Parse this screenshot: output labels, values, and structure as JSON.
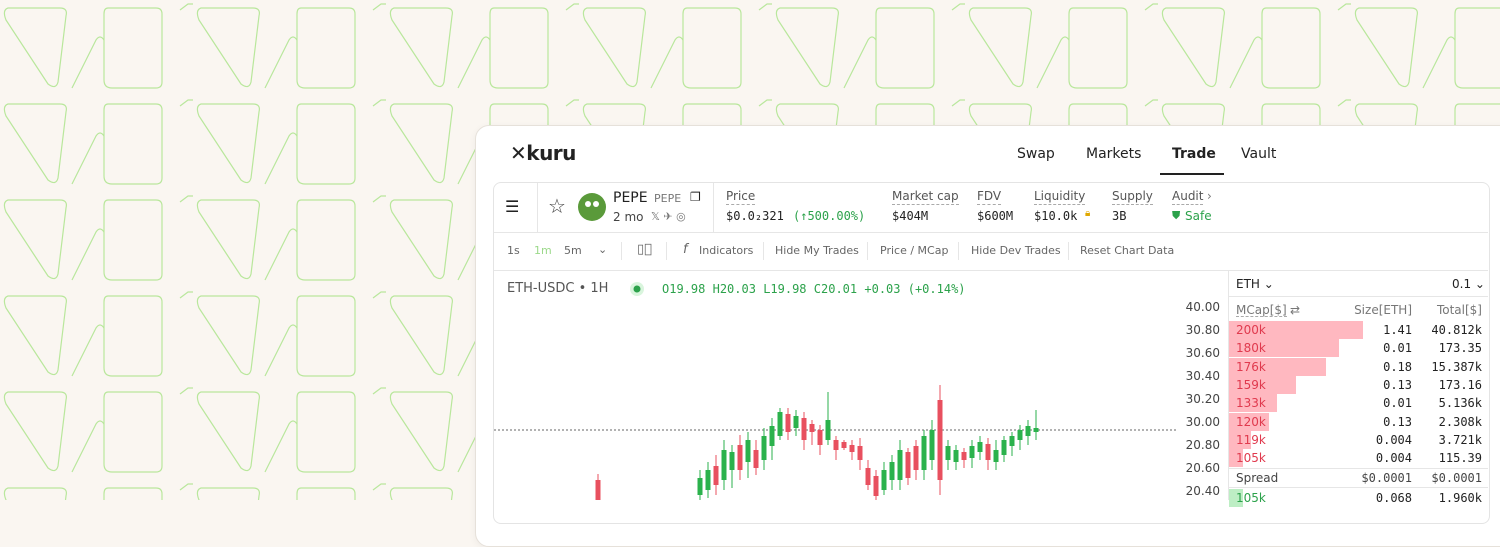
{
  "nav": {
    "logo": "kuru",
    "tabs": [
      "Swap",
      "Markets",
      "Trade",
      "Vault"
    ]
  },
  "token": {
    "name": "PEPE",
    "symbol": "PEPE",
    "age": "2 mo"
  },
  "stats": [
    {
      "label": "Price",
      "value": "$0.0₂321",
      "change": "(↑500.00%)"
    },
    {
      "label": "Market cap",
      "value": "$404M"
    },
    {
      "label": "FDV",
      "value": "$600M"
    },
    {
      "label": "Liquidity",
      "value": "$10.0k"
    },
    {
      "label": "Supply",
      "value": "3B"
    },
    {
      "label": "Audit",
      "value": "Safe"
    }
  ],
  "toolbar": {
    "intervals": [
      "1s",
      "1m",
      "5m"
    ],
    "buttons": [
      "Indicators",
      "Hide My Trades",
      "Price / MCap",
      "Hide Dev Trades",
      "Reset Chart Data"
    ]
  },
  "chart": {
    "pair": "ETH-USDC • 1H",
    "ohlc": [
      "O19.98",
      "H20.03",
      "L19.98",
      "C20.01",
      "+0.03",
      "(+0.14%)"
    ],
    "price_scale": [
      "40.00",
      "30.80",
      "30.60",
      "30.40",
      "30.20",
      "30.00",
      "20.80",
      "20.60",
      "20.40"
    ]
  },
  "order_book": {
    "asset": "ETH",
    "step": "0.1",
    "headers": [
      "MCap[$]",
      "Size[ETH]",
      "Total[$]"
    ],
    "asks": [
      [
        "200k",
        "1.41",
        "40.812k"
      ],
      [
        "180k",
        "0.01",
        "173.35"
      ],
      [
        "176k",
        "0.18",
        "15.387k"
      ],
      [
        "159k",
        "0.13",
        "173.16"
      ],
      [
        "133k",
        "0.01",
        "5.136k"
      ],
      [
        "120k",
        "0.13",
        "2.308k"
      ],
      [
        "119k",
        "0.004",
        "3.721k"
      ],
      [
        "105k",
        "0.004",
        "115.39"
      ]
    ],
    "spread": {
      "label": "Spread",
      "values": [
        "$0.0001",
        "$0.0001"
      ]
    },
    "bids": [
      [
        "105k",
        "0.068",
        "1.960k"
      ]
    ]
  }
}
